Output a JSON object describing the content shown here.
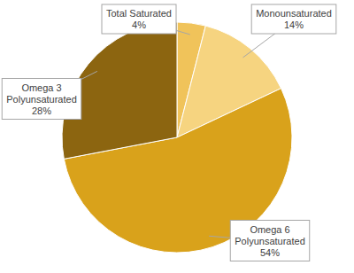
{
  "chart_data": {
    "type": "pie",
    "categories": [
      "Total Saturated",
      "Monounsaturated",
      "Omega 6 Polyunsaturated",
      "Omega 3 Polyunsaturated"
    ],
    "values": [
      4,
      14,
      54,
      28
    ],
    "value_labels": [
      "4%",
      "14%",
      "54%",
      "28%"
    ],
    "colors": [
      "#f0c35a",
      "#f6d480",
      "#d9a21b",
      "#8c6510"
    ],
    "data_labels": true
  }
}
